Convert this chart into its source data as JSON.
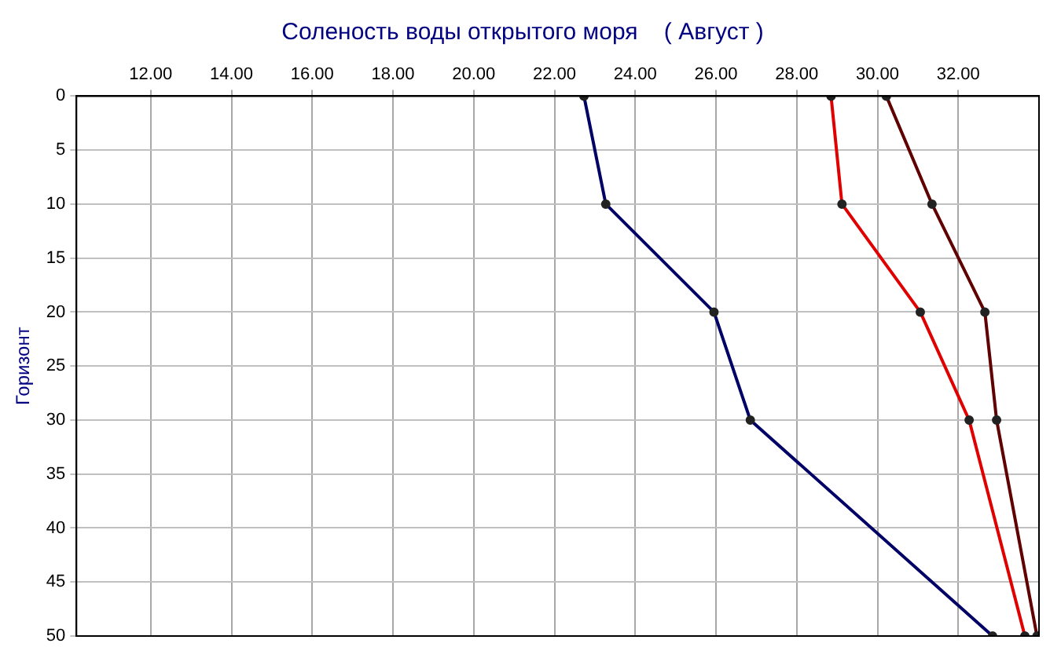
{
  "chart_data": {
    "type": "line",
    "title": "Соленость воды открытого моря    ( Август )",
    "ylabel": "Горизонт",
    "xlim": [
      10.16,
      34
    ],
    "xticks": [
      {
        "value": 12,
        "label": "12.00"
      },
      {
        "value": 14,
        "label": "14.00"
      },
      {
        "value": 16,
        "label": "16.00"
      },
      {
        "value": 18,
        "label": "18.00"
      },
      {
        "value": 20,
        "label": "20.00"
      },
      {
        "value": 22,
        "label": "22.00"
      },
      {
        "value": 24,
        "label": "24.00"
      },
      {
        "value": 26,
        "label": "26.00"
      },
      {
        "value": 28,
        "label": "28.00"
      },
      {
        "value": 30,
        "label": "30.00"
      },
      {
        "value": 32,
        "label": "32.00"
      }
    ],
    "ylim": [
      50,
      0
    ],
    "yticks": [
      0,
      5,
      10,
      15,
      20,
      25,
      30,
      35,
      40,
      45,
      50
    ],
    "grid": true,
    "legend": false,
    "marker": "circle",
    "line_style": "solid",
    "series": [
      {
        "color": "#000066",
        "x": [
          22.73,
          23.27,
          25.95,
          26.85,
          32.85
        ],
        "values": [
          0,
          10,
          20,
          30,
          50
        ]
      },
      {
        "color": "#e00000",
        "x": [
          28.85,
          29.12,
          31.06,
          32.27,
          33.65
        ],
        "values": [
          0,
          10,
          20,
          30,
          50
        ]
      },
      {
        "color": "#600000",
        "x": [
          30.22,
          31.35,
          32.66,
          32.95,
          33.95
        ],
        "values": [
          0,
          10,
          20,
          30,
          50
        ]
      }
    ]
  }
}
